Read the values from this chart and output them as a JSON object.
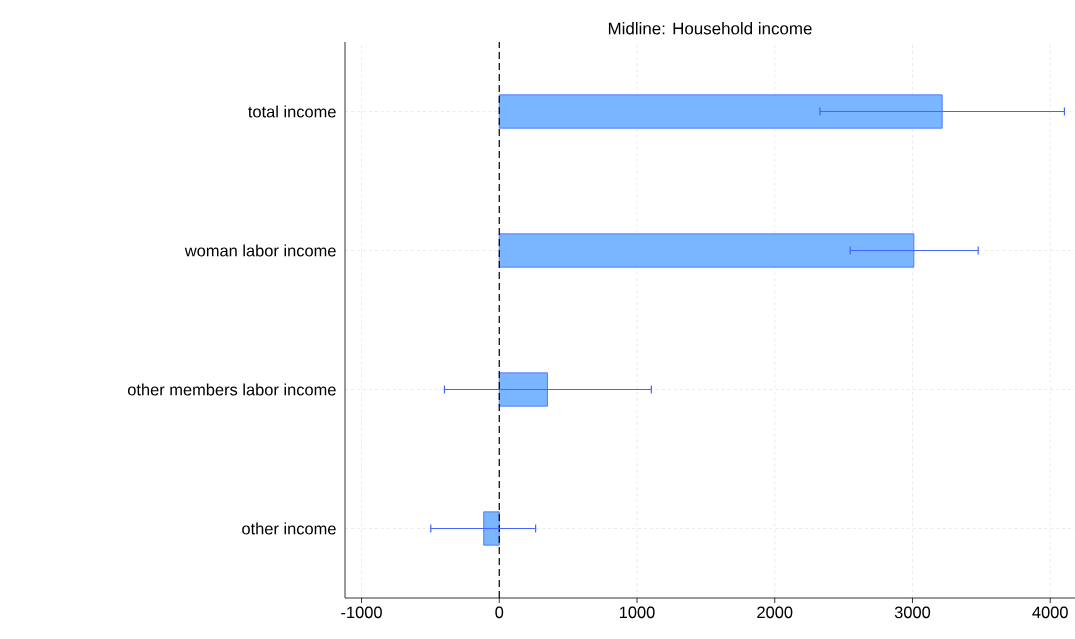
{
  "chart_data": {
    "type": "bar",
    "orientation": "horizontal",
    "title": "Midline: Household income",
    "categories": [
      "total income",
      "woman labor income",
      "other members labor income",
      "other income"
    ],
    "values": [
      3216,
      3010,
      350,
      -113
    ],
    "errors": [
      [
        2328,
        4103
      ],
      [
        2548,
        3477
      ],
      [
        -398,
        1104
      ],
      [
        -497,
        264
      ]
    ],
    "color": "#7ab6ff",
    "xlim": [
      -1120,
      4180
    ],
    "xticks": [
      -1000,
      0,
      1000,
      2000,
      3000,
      4000
    ],
    "grid": true,
    "ref_lines": [
      {
        "axis": "x",
        "value": 0,
        "color": "#000000",
        "line_style": "dashed"
      }
    ]
  }
}
